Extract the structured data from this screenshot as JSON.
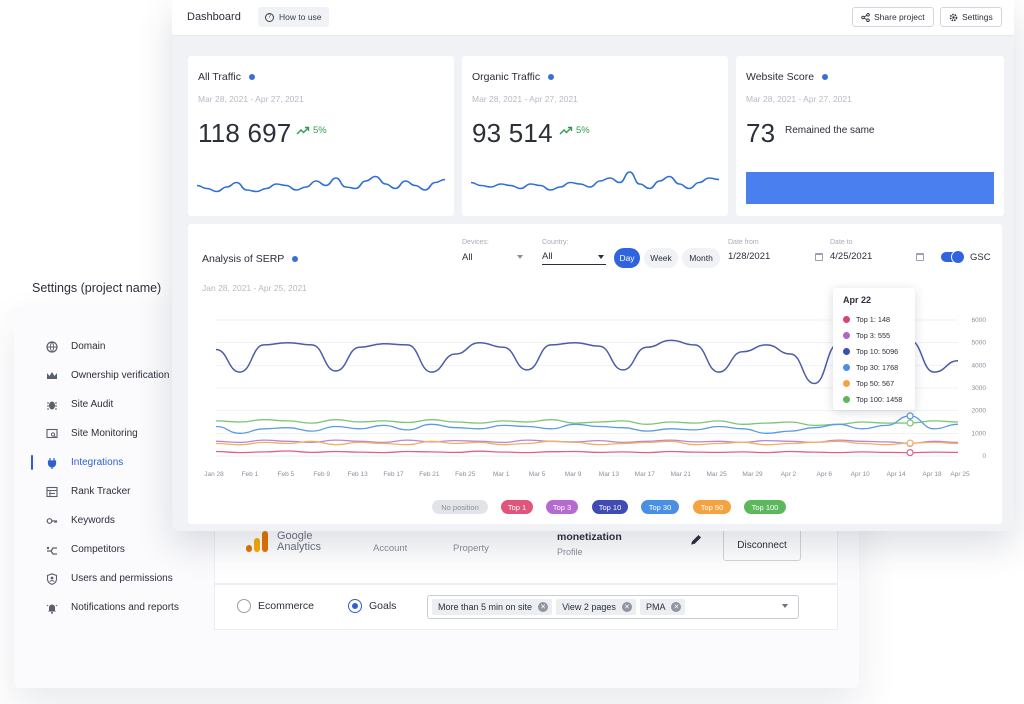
{
  "settings": {
    "title": "Settings (project name)",
    "nav": [
      {
        "label": "Domain",
        "icon": "globe-icon",
        "active": false
      },
      {
        "label": "Ownership verification",
        "icon": "crown-icon",
        "active": false
      },
      {
        "label": "Site Audit",
        "icon": "bug-icon",
        "active": false
      },
      {
        "label": "Site Monitoring",
        "icon": "monitor-search-icon",
        "active": false
      },
      {
        "label": "Integrations",
        "icon": "plug-icon",
        "active": true
      },
      {
        "label": "Rank Tracker",
        "icon": "rank-table-icon",
        "active": false
      },
      {
        "label": "Keywords",
        "icon": "key-icon",
        "active": false
      },
      {
        "label": "Competitors",
        "icon": "competitors-icon",
        "active": false
      },
      {
        "label": "Users and permissions",
        "icon": "user-shield-icon",
        "active": false
      },
      {
        "label": "Notifications and reports",
        "icon": "bell-icon",
        "active": false
      }
    ]
  },
  "integration": {
    "brand_line1": "Google",
    "brand_line2": "Analytics",
    "account_label": "Account",
    "property_label": "Property",
    "profile_value": "monetization",
    "profile_label": "Profile",
    "disconnect_label": "Disconnect",
    "radio_ecommerce": "Ecommerce",
    "radio_goals": "Goals",
    "selected_radio": "Goals",
    "goal_chips": [
      "More than 5 min on site",
      "View 2 pages",
      "PMA"
    ]
  },
  "topbar": {
    "title": "Dashboard",
    "how_to_use": "How to use",
    "share_label": "Share project",
    "settings_label": "Settings"
  },
  "cards": [
    {
      "title": "All Traffic",
      "dates": "Mar 28, 2021 - Apr 27, 2021",
      "value": "118 697",
      "delta": "5%"
    },
    {
      "title": "Organic Traffic",
      "dates": "Mar 28, 2021 - Apr 27, 2021",
      "value": "93 514",
      "delta": "5%"
    },
    {
      "title": "Website Score",
      "dates": "Mar 28, 2021 - Apr 27, 2021",
      "value": "73",
      "note": "Remained the same"
    }
  ],
  "serp": {
    "title": "Analysis of SERP",
    "dates": "Jan 28, 2021 - Apr 25, 2021",
    "devices_label": "Devices:",
    "devices_value": "All",
    "country_label": "Country:",
    "country_value": "All",
    "periods": [
      "Day",
      "Week",
      "Month"
    ],
    "active_period": "Day",
    "date_from_label": "Date from",
    "date_from": "1/28/2021",
    "date_to_label": "Date to",
    "date_to": "4/25/2021",
    "gsc_label": "GSC",
    "gsc_on": true,
    "tooltip": {
      "date": "Apr 22",
      "rows": [
        {
          "label": "Top 1: 148",
          "color": "#d6476f"
        },
        {
          "label": "Top 3: 555",
          "color": "#b065c9"
        },
        {
          "label": "Top 10: 5096",
          "color": "#3a4fb0"
        },
        {
          "label": "Top 30: 1768",
          "color": "#4a90e2"
        },
        {
          "label": "Top 50: 567",
          "color": "#f5a340"
        },
        {
          "label": "Top 100: 1458",
          "color": "#5cb85c"
        }
      ]
    },
    "legend": [
      {
        "label": "No position",
        "color": "#e3e4e8",
        "text": "#8a8f9c"
      },
      {
        "label": "Top 1",
        "color": "#e0557a",
        "text": "#ffffff"
      },
      {
        "label": "Top 3",
        "color": "#b56ad0",
        "text": "#ffffff"
      },
      {
        "label": "Top 10",
        "color": "#3f4cb5",
        "text": "#ffffff"
      },
      {
        "label": "Top 30",
        "color": "#4a90e2",
        "text": "#ffffff"
      },
      {
        "label": "Top 50",
        "color": "#f5a340",
        "text": "#ffffff"
      },
      {
        "label": "Top 100",
        "color": "#5cb85c",
        "text": "#ffffff"
      }
    ]
  },
  "chart_data": {
    "type": "line",
    "x_ticks": [
      "Jan 28",
      "Feb 1",
      "Feb 5",
      "Feb 9",
      "Feb 13",
      "Feb 17",
      "Feb 21",
      "Feb 25",
      "Mar 1",
      "Mar 5",
      "Mar 9",
      "Mar 13",
      "Mar 17",
      "Mar 21",
      "Mar 25",
      "Mar 29",
      "Apr 2",
      "Apr 6",
      "Apr 10",
      "Apr 14",
      "Apr 18",
      "Apr 25"
    ],
    "y_ticks": [
      0,
      1000,
      2000,
      3000,
      4000,
      5000,
      6000
    ],
    "ylim": [
      0,
      6000
    ],
    "series": [
      {
        "name": "Top 10",
        "color": "#4c5ca8",
        "values": [
          4700,
          3700,
          4900,
          5000,
          4900,
          3750,
          4800,
          4950,
          4900,
          3700,
          4500,
          5000,
          4800,
          3800,
          4900,
          5000,
          4850,
          3800,
          4800,
          5100,
          4900,
          3700,
          4600,
          4900,
          4500,
          3200,
          4950,
          5000,
          4900,
          5096,
          3700,
          4200
        ]
      },
      {
        "name": "Top 100",
        "color": "#7cc576",
        "values": [
          1550,
          1500,
          1600,
          1550,
          1450,
          1600,
          1500,
          1550,
          1480,
          1600,
          1500,
          1450,
          1550,
          1500,
          1600,
          1450,
          1500,
          1550,
          1400,
          1500,
          1450,
          1550,
          1400,
          1450,
          1500,
          1350,
          1400,
          1500,
          1450,
          1458,
          1550,
          1500
        ]
      },
      {
        "name": "Top 30",
        "color": "#5b9be0",
        "values": [
          1300,
          1000,
          1200,
          1250,
          1100,
          1300,
          1200,
          1350,
          1150,
          1400,
          1250,
          1200,
          1350,
          1300,
          1200,
          1400,
          1300,
          1250,
          1100,
          1200,
          1150,
          1300,
          1200,
          1000,
          1100,
          1250,
          1400,
          1200,
          1350,
          1768,
          1200,
          1400
        ]
      },
      {
        "name": "Top 3",
        "color": "#b887d0",
        "values": [
          650,
          600,
          700,
          650,
          600,
          700,
          650,
          600,
          700,
          620,
          680,
          650,
          600,
          700,
          650,
          620,
          680,
          600,
          650,
          700,
          620,
          650,
          600,
          680,
          650,
          600,
          700,
          650,
          620,
          555,
          650,
          600
        ]
      },
      {
        "name": "Top 50",
        "color": "#f2b066",
        "values": [
          550,
          500,
          600,
          550,
          650,
          500,
          600,
          550,
          500,
          650,
          550,
          600,
          500,
          550,
          650,
          600,
          500,
          550,
          600,
          650,
          500,
          550,
          600,
          500,
          550,
          600,
          650,
          550,
          500,
          567,
          600,
          550
        ]
      },
      {
        "name": "Top 1",
        "color": "#e0608a",
        "values": [
          200,
          150,
          180,
          220,
          160,
          200,
          170,
          150,
          200,
          180,
          160,
          210,
          170,
          150,
          190,
          200,
          160,
          180,
          150,
          200,
          170,
          160,
          180,
          150,
          200,
          170,
          150,
          180,
          160,
          148,
          170,
          160
        ]
      }
    ]
  },
  "sparklines": {
    "all_traffic": [
      0.45,
      0.35,
      0.25,
      0.4,
      0.55,
      0.3,
      0.25,
      0.35,
      0.5,
      0.45,
      0.3,
      0.4,
      0.6,
      0.45,
      0.7,
      0.4,
      0.35,
      0.6,
      0.75,
      0.5,
      0.35,
      0.6,
      0.45,
      0.3,
      0.55,
      0.65
    ],
    "organic_traffic": [
      0.55,
      0.45,
      0.4,
      0.5,
      0.45,
      0.35,
      0.5,
      0.45,
      0.3,
      0.4,
      0.55,
      0.5,
      0.4,
      0.6,
      0.7,
      0.55,
      0.9,
      0.5,
      0.35,
      0.6,
      0.75,
      0.5,
      0.35,
      0.55,
      0.7,
      0.65
    ]
  },
  "colors": {
    "accent": "#2f63e0",
    "positive": "#2f9e4a",
    "score_bar": "#4a7ff0"
  }
}
